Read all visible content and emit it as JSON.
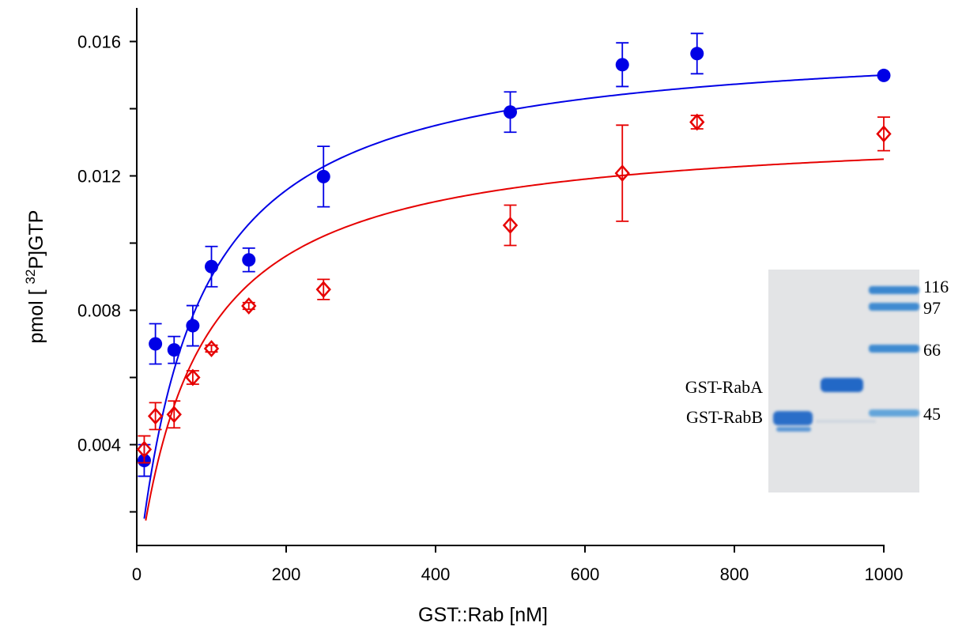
{
  "chart_data": {
    "type": "scatter",
    "xlabel": "GST::Rab [nM]",
    "ylabel_parts": [
      "pmol  [ ",
      "32",
      "P]GTP"
    ],
    "x": [
      10,
      25,
      50,
      75,
      100,
      150,
      250,
      500,
      650,
      750,
      1000
    ],
    "series": [
      {
        "color": "#0000e6",
        "marker": "circle",
        "values": [
          0.00353,
          0.007,
          0.00682,
          0.00754,
          0.0093,
          0.0095,
          0.01198,
          0.0139,
          0.01531,
          0.01564,
          0.01499
        ],
        "errors": [
          0.00047,
          0.0006,
          0.0004,
          0.0006,
          0.0006,
          0.00035,
          0.0009,
          0.0006,
          0.00065,
          0.0006,
          0
        ],
        "fit": {
          "vmax": 0.0162,
          "km": 80,
          "x_start": 10
        }
      },
      {
        "color": "#e60000",
        "marker": "diamond",
        "values": [
          0.00386,
          0.00485,
          0.0049,
          0.006,
          0.00686,
          0.00813,
          0.00862,
          0.01053,
          0.01208,
          0.0136,
          0.01325
        ],
        "errors": [
          0.0004,
          0.0004,
          0.0004,
          0.0002,
          0.0001,
          0.0001,
          0.0003,
          0.0006,
          0.00143,
          0.0002,
          0.0005
        ],
        "fit": {
          "vmax": 0.01351,
          "km": 81,
          "x_start": 12
        }
      }
    ],
    "xlim": [
      0,
      1000
    ],
    "xticks": [
      0,
      200,
      400,
      600,
      800,
      1000
    ],
    "ylim": [
      0.001,
      0.017
    ],
    "yticks": [
      0.004,
      0.008,
      0.012,
      0.016
    ],
    "yminor_ticks": [
      0.002,
      0.006,
      0.01,
      0.014
    ],
    "inset": {
      "lane_labels": [
        "GST-RabA",
        "GST-RabB"
      ],
      "marker_labels": [
        "116",
        "97",
        "66",
        "45"
      ]
    }
  }
}
